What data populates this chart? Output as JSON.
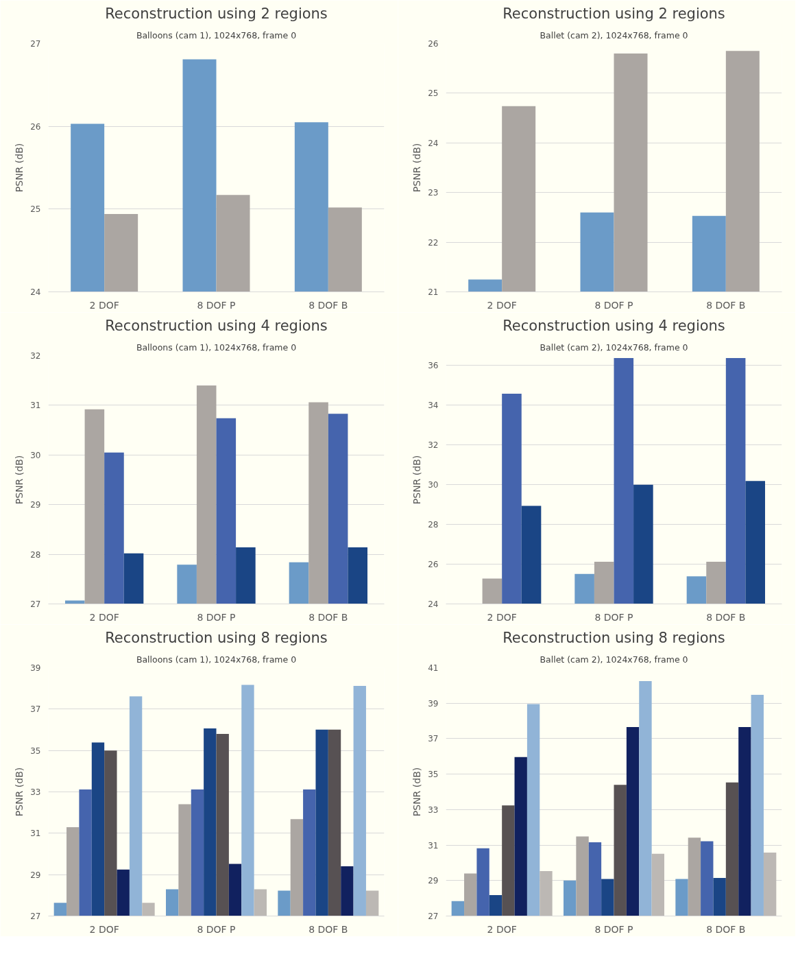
{
  "chart_data": [
    {
      "type": "bar",
      "title": "Reconstruction using 2 regions",
      "subtitle": "Balloons (cam 1), 1024x768, frame 0",
      "ylabel": "PSNR (dB)",
      "categories": [
        "2 DOF",
        "8 DOF P",
        "8 DOF B"
      ],
      "ylim": [
        24,
        27
      ],
      "yticks": [
        24,
        25,
        26,
        27
      ],
      "grid": "y",
      "series": [
        {
          "color": "#6b9bc8",
          "values": [
            26.03,
            26.81,
            26.05
          ]
        },
        {
          "color": "#aba6a2",
          "values": [
            24.94,
            25.17,
            25.02
          ]
        }
      ]
    },
    {
      "type": "bar",
      "title": "Reconstruction using 2 regions",
      "subtitle": "Ballet (cam 2), 1024x768, frame 0",
      "ylabel": "PSNR (dB)",
      "categories": [
        "2 DOF",
        "8 DOF P",
        "8 DOF B"
      ],
      "ylim": [
        21,
        26
      ],
      "yticks": [
        21,
        22,
        23,
        24,
        25,
        26
      ],
      "grid": "y",
      "series": [
        {
          "color": "#6b9bc8",
          "values": [
            21.25,
            22.6,
            22.53
          ]
        },
        {
          "color": "#aba6a2",
          "values": [
            24.74,
            25.8,
            25.85
          ]
        }
      ]
    },
    {
      "type": "bar",
      "title": "Reconstruction using 4 regions",
      "subtitle": "Balloons (cam 1), 1024x768, frame 0",
      "ylabel": "PSNR (dB)",
      "categories": [
        "2 DOF",
        "8 DOF P",
        "8 DOF B"
      ],
      "ylim": [
        27,
        32
      ],
      "yticks": [
        27,
        28,
        29,
        30,
        31,
        32
      ],
      "grid": "y",
      "series": [
        {
          "color": "#6b9bc8",
          "values": [
            27.07,
            27.79,
            27.84
          ]
        },
        {
          "color": "#aba6a2",
          "values": [
            30.92,
            31.4,
            31.06
          ]
        },
        {
          "color": "#4564ad",
          "values": [
            30.05,
            30.74,
            30.83
          ]
        },
        {
          "color": "#1a4585",
          "values": [
            28.02,
            28.14,
            28.14
          ]
        }
      ]
    },
    {
      "type": "bar",
      "title": "Reconstruction using 4 regions",
      "subtitle": "Ballet (cam 2), 1024x768, frame 0",
      "ylabel": "PSNR (dB)",
      "categories": [
        "2 DOF",
        "8 DOF P",
        "8 DOF B"
      ],
      "ylim": [
        24,
        36.5
      ],
      "yticks": [
        24,
        26,
        28,
        30,
        32,
        34,
        36
      ],
      "grid": "y",
      "series": [
        {
          "color": "#6b9bc8",
          "values": [
            null,
            25.51,
            25.39
          ]
        },
        {
          "color": "#aba6a2",
          "values": [
            25.28,
            26.12,
            26.12
          ]
        },
        {
          "color": "#4564ad",
          "values": [
            34.58,
            36.38,
            36.38
          ]
        },
        {
          "color": "#1a4585",
          "values": [
            28.94,
            30.0,
            30.19
          ]
        }
      ]
    },
    {
      "type": "bar",
      "title": "Reconstruction using 8 regions",
      "subtitle": "Balloons (cam 1), 1024x768, frame 0",
      "ylabel": "PSNR (dB)",
      "categories": [
        "2 DOF",
        "8 DOF P",
        "8 DOF B"
      ],
      "ylim": [
        27,
        39
      ],
      "yticks": [
        27,
        29,
        31,
        33,
        35,
        37,
        39
      ],
      "grid": "y",
      "series": [
        {
          "color": "#6b9bc8",
          "values": [
            27.64,
            28.29,
            28.23
          ]
        },
        {
          "color": "#aba6a2",
          "values": [
            31.29,
            32.4,
            31.68
          ]
        },
        {
          "color": "#4564ad",
          "values": [
            33.12,
            33.12,
            33.12
          ]
        },
        {
          "color": "#1a4585",
          "values": [
            35.39,
            36.07,
            36.01
          ]
        },
        {
          "color": "#575153",
          "values": [
            35.0,
            35.8,
            36.01
          ]
        },
        {
          "color": "#11215f",
          "values": [
            29.25,
            29.52,
            29.4
          ]
        },
        {
          "color": "#91b4d7",
          "values": [
            37.62,
            38.17,
            38.12
          ]
        },
        {
          "color": "#bcb8b4",
          "values": [
            27.64,
            28.29,
            28.23
          ]
        }
      ]
    },
    {
      "type": "bar",
      "title": "Reconstruction using 8 regions",
      "subtitle": "Ballet (cam 2), 1024x768, frame 0",
      "ylabel": "PSNR (dB)",
      "categories": [
        "2 DOF",
        "8 DOF P",
        "8 DOF B"
      ],
      "ylim": [
        27,
        41
      ],
      "yticks": [
        27,
        29,
        31,
        33,
        35,
        37,
        39,
        41
      ],
      "grid": "y",
      "series": [
        {
          "color": "#6b9bc8",
          "values": [
            27.84,
            29.0,
            29.09
          ]
        },
        {
          "color": "#aba6a2",
          "values": [
            29.4,
            31.49,
            31.42
          ]
        },
        {
          "color": "#4564ad",
          "values": [
            30.82,
            31.16,
            31.22
          ]
        },
        {
          "color": "#1a4585",
          "values": [
            28.18,
            29.09,
            29.15
          ]
        },
        {
          "color": "#575153",
          "values": [
            33.24,
            34.4,
            34.53
          ]
        },
        {
          "color": "#11215f",
          "values": [
            35.96,
            37.65,
            37.65
          ]
        },
        {
          "color": "#91b4d7",
          "values": [
            38.95,
            40.25,
            39.47
          ]
        },
        {
          "color": "#bcb8b4",
          "values": [
            29.53,
            30.51,
            30.58
          ]
        }
      ]
    }
  ]
}
